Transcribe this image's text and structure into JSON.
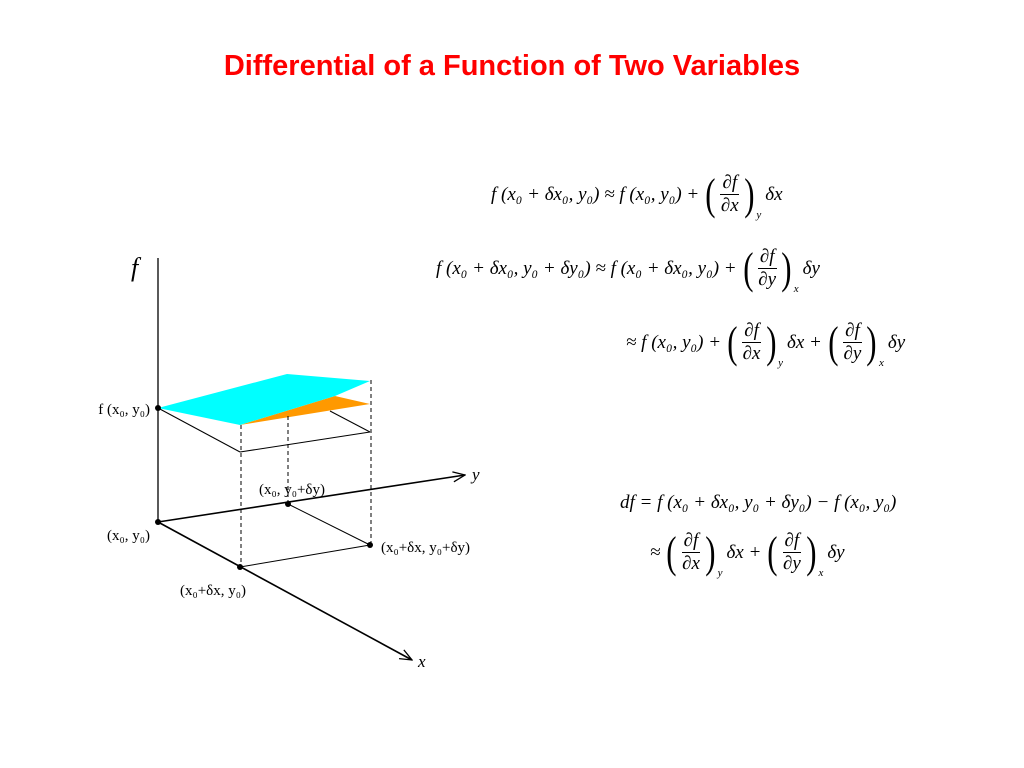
{
  "title": "Differential of a Function of Two Variables",
  "diagram": {
    "axis_labels": {
      "f": "f",
      "x": "x",
      "y": "y"
    },
    "point_labels": {
      "f_x0_y0": "f (x₀, y₀)",
      "x0_y0": "(x₀, y₀)",
      "x0dx_y0": "(x₀+δx, y₀)",
      "x0_y0dy": "(x₀, y₀+δy)",
      "x0dx_y0dy": "(x₀+δx, y₀+δy)"
    },
    "colors": {
      "upper_plane": "#00ffff",
      "lower_plane": "#ff9900"
    }
  },
  "equations": {
    "eq1": {
      "lhs": "f (x₀ + δx₀, y₀) ≈ f (x₀, y₀) +",
      "num": "∂f",
      "den": "∂x",
      "sub": "y",
      "tail": "δx"
    },
    "eq2": {
      "lhs": "f (x₀ + δx₀, y₀ + δy₀) ≈ f (x₀ + δx₀, y₀) +",
      "num": "∂f",
      "den": "∂y",
      "sub": "x",
      "tail": "δy"
    },
    "eq3": {
      "lhs": "≈ f (x₀, y₀) +",
      "num1": "∂f",
      "den1": "∂x",
      "sub1": "y",
      "mid": "δx +",
      "num2": "∂f",
      "den2": "∂y",
      "sub2": "x",
      "tail": "δy"
    },
    "eq4": {
      "text": "df = f (x₀ + δx₀, y₀ + δy₀) − f (x₀, y₀)"
    },
    "eq5": {
      "lhs": "≈",
      "num1": "∂f",
      "den1": "∂x",
      "sub1": "y",
      "mid": "δx +",
      "num2": "∂f",
      "den2": "∂y",
      "sub2": "x",
      "tail": "δy"
    }
  }
}
